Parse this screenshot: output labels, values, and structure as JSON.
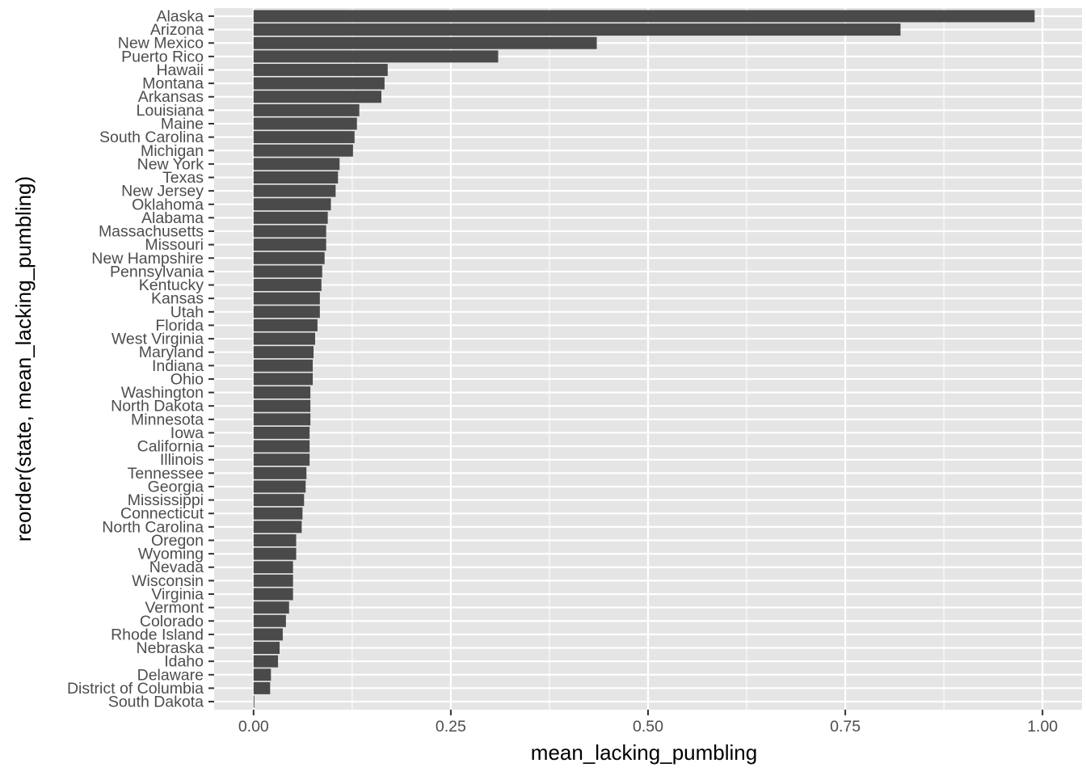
{
  "chart_data": {
    "type": "bar",
    "orientation": "horizontal",
    "title": "",
    "xlabel": "mean_lacking_pumbling",
    "ylabel": "reorder(state, mean_lacking_pumbling)",
    "xlim": [
      -0.05,
      1.05
    ],
    "xticks": [
      0.0,
      0.25,
      0.5,
      0.75,
      1.0
    ],
    "xtick_labels": [
      "0.00",
      "0.25",
      "0.50",
      "0.75",
      "1.00"
    ],
    "grid": true,
    "legend": "none",
    "colors": {
      "panel": "#e5e5e5",
      "grid": "#ffffff",
      "bar": "#4a4a4a",
      "text": "#4d4d4d",
      "title": "#000000"
    },
    "categories": [
      "Alaska",
      "Arizona",
      "New Mexico",
      "Puerto Rico",
      "Hawaii",
      "Montana",
      "Arkansas",
      "Louisiana",
      "Maine",
      "South Carolina",
      "Michigan",
      "New York",
      "Texas",
      "New Jersey",
      "Oklahoma",
      "Alabama",
      "Massachusetts",
      "Missouri",
      "New Hampshire",
      "Pennsylvania",
      "Kentucky",
      "Kansas",
      "Utah",
      "Florida",
      "West Virginia",
      "Maryland",
      "Indiana",
      "Ohio",
      "Washington",
      "North Dakota",
      "Minnesota",
      "Iowa",
      "California",
      "Illinois",
      "Tennessee",
      "Georgia",
      "Mississippi",
      "Connecticut",
      "North Carolina",
      "Oregon",
      "Wyoming",
      "Nevada",
      "Wisconsin",
      "Virginia",
      "Vermont",
      "Colorado",
      "Rhode Island",
      "Nebraska",
      "Idaho",
      "Delaware",
      "District of Columbia",
      "South Dakota"
    ],
    "values": [
      0.99,
      0.82,
      0.435,
      0.31,
      0.17,
      0.166,
      0.162,
      0.134,
      0.131,
      0.128,
      0.126,
      0.109,
      0.107,
      0.104,
      0.098,
      0.094,
      0.092,
      0.092,
      0.09,
      0.087,
      0.086,
      0.084,
      0.084,
      0.081,
      0.078,
      0.076,
      0.075,
      0.075,
      0.072,
      0.072,
      0.072,
      0.071,
      0.071,
      0.071,
      0.067,
      0.066,
      0.064,
      0.062,
      0.061,
      0.054,
      0.054,
      0.05,
      0.05,
      0.05,
      0.045,
      0.041,
      0.037,
      0.033,
      0.031,
      0.022,
      0.021,
      0.001
    ]
  }
}
